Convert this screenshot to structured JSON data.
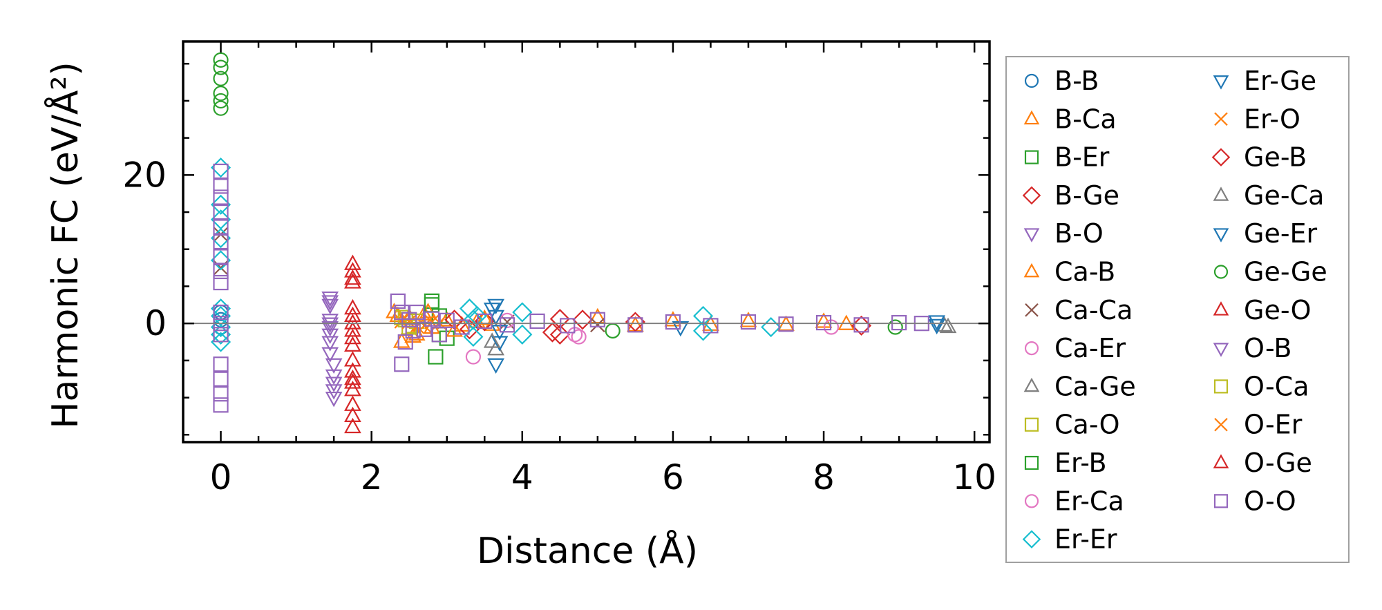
{
  "chart_data": {
    "type": "scatter",
    "title": "",
    "xlabel": "Distance (Å)",
    "ylabel": "Harmonic FC (eV/Å²)",
    "xlim": [
      -0.5,
      10.2
    ],
    "ylim": [
      -16,
      38
    ],
    "xticks": [
      0,
      2,
      4,
      6,
      8,
      10
    ],
    "yticks": [
      0,
      20
    ],
    "xtick_labels": [
      "0",
      "2",
      "4",
      "6",
      "8",
      "10"
    ],
    "ytick_labels": [
      "0",
      "20"
    ],
    "reference_line_y": 0,
    "grid": false,
    "legend_position": "right-outside",
    "legend_columns": 2,
    "series": [
      {
        "name": "B-B",
        "marker": "circle",
        "color": "#1f77b4",
        "x": [
          0,
          0,
          0
        ],
        "y": [
          0.5,
          -0.5,
          1.5
        ]
      },
      {
        "name": "B-Ca",
        "marker": "triangle-up",
        "color": "#ff7f0e",
        "x": [
          2.3,
          2.4,
          2.5,
          2.6,
          2.7,
          2.8,
          3.0,
          3.2,
          3.4,
          3.6
        ],
        "y": [
          1.5,
          -2.5,
          0.8,
          -1.5,
          1.2,
          -0.6,
          0.4,
          -0.3,
          0.2,
          -0.2
        ]
      },
      {
        "name": "B-Er",
        "marker": "square",
        "color": "#2ca02c",
        "x": [
          2.8,
          2.85,
          2.9,
          3.0
        ],
        "y": [
          3.0,
          -4.5,
          1.0,
          -2.0
        ]
      },
      {
        "name": "B-Ge",
        "marker": "diamond",
        "color": "#d62728",
        "x": [
          3.1,
          3.3,
          3.5,
          4.5,
          4.8
        ],
        "y": [
          0.5,
          -0.8,
          0.3,
          -1.5,
          0.5
        ]
      },
      {
        "name": "B-O",
        "marker": "triangle-down",
        "color": "#9467bd",
        "x": [
          1.45,
          1.45,
          1.45,
          1.45,
          1.45,
          1.45,
          1.45,
          1.5,
          1.5,
          1.5,
          1.5,
          1.5
        ],
        "y": [
          3.5,
          2.5,
          0.5,
          -0.5,
          -1.5,
          -2.5,
          -4.0,
          -5.5,
          -7.0,
          -8.0,
          -9.0,
          -10.0
        ]
      },
      {
        "name": "Ca-B",
        "marker": "triangle-up",
        "color": "#ff7f0e",
        "x": [
          2.35,
          2.55,
          2.75,
          3.1,
          3.5,
          5.0,
          5.5,
          6.0,
          6.5,
          7.0,
          7.5,
          8.0,
          8.3
        ],
        "y": [
          1.0,
          -1.8,
          1.5,
          -1.0,
          0.6,
          0.8,
          -0.3,
          0.4,
          -0.2,
          0.3,
          -0.2,
          0.2,
          -0.1
        ]
      },
      {
        "name": "Ca-Ca",
        "marker": "x",
        "color": "#8c564b",
        "x": [
          0,
          0,
          3.8,
          5.0
        ],
        "y": [
          7.5,
          12.0,
          0.2,
          -0.2
        ]
      },
      {
        "name": "Ca-Er",
        "marker": "circle",
        "color": "#e377c2",
        "x": [
          3.35,
          4.75,
          8.1
        ],
        "y": [
          -4.5,
          -1.8,
          -0.5
        ]
      },
      {
        "name": "Ca-Ge",
        "marker": "triangle-up",
        "color": "#7f7f7f",
        "x": [
          3.65,
          9.6
        ],
        "y": [
          -3.5,
          -0.3
        ]
      },
      {
        "name": "Ca-O",
        "marker": "square",
        "color": "#bcbd22",
        "x": [
          2.4,
          2.5,
          2.6
        ],
        "y": [
          0.8,
          -0.5,
          0.3
        ]
      },
      {
        "name": "Er-B",
        "marker": "square",
        "color": "#2ca02c",
        "x": [
          2.8,
          2.9
        ],
        "y": [
          2.5,
          -1.5
        ]
      },
      {
        "name": "Er-Ca",
        "marker": "circle",
        "color": "#e377c2",
        "x": [
          3.8,
          4.7
        ],
        "y": [
          0.4,
          -1.5
        ]
      },
      {
        "name": "Er-Er",
        "marker": "diamond",
        "color": "#17becf",
        "x": [
          0,
          0,
          0,
          0,
          0,
          0,
          0,
          0,
          0,
          0,
          3.3,
          3.35,
          3.35,
          3.4,
          4.0,
          4.0,
          6.4,
          6.4,
          7.3
        ],
        "y": [
          21.0,
          16.0,
          14.0,
          11.5,
          2.0,
          1.0,
          -0.5,
          -1.5,
          -2.5,
          8.5,
          2.0,
          0.5,
          -1.8,
          1.0,
          1.5,
          -1.5,
          1.0,
          -1.0,
          -0.5
        ]
      },
      {
        "name": "Er-Ge",
        "marker": "triangle-down",
        "color": "#1f77b4",
        "x": [
          3.65,
          3.65,
          3.65,
          3.7,
          9.5
        ],
        "y": [
          2.5,
          1.0,
          -5.5,
          -2.5,
          0.3
        ]
      },
      {
        "name": "Er-O",
        "marker": "x",
        "color": "#ff7f0e",
        "x": [
          2.4,
          2.6,
          2.8
        ],
        "y": [
          0.3,
          -0.4,
          0.2
        ]
      },
      {
        "name": "Ge-B",
        "marker": "diamond",
        "color": "#d62728",
        "x": [
          4.4,
          4.5,
          5.5,
          8.5
        ],
        "y": [
          -1.2,
          0.6,
          0.2,
          -0.3
        ]
      },
      {
        "name": "Ge-Ca",
        "marker": "triangle-up",
        "color": "#7f7f7f",
        "x": [
          3.6,
          9.65
        ],
        "y": [
          -2.5,
          -0.5
        ]
      },
      {
        "name": "Ge-Er",
        "marker": "triangle-down",
        "color": "#1f77b4",
        "x": [
          3.6,
          3.7,
          6.1,
          9.5
        ],
        "y": [
          2.0,
          -1.0,
          -0.5,
          -0.2
        ]
      },
      {
        "name": "Ge-Ge",
        "marker": "circle",
        "color": "#2ca02c",
        "x": [
          0,
          0,
          0,
          0,
          0,
          0,
          5.2,
          8.95
        ],
        "y": [
          35.5,
          34.5,
          33.0,
          31.0,
          30.0,
          29.0,
          -1.0,
          -0.5
        ]
      },
      {
        "name": "Ge-O",
        "marker": "triangle-up",
        "color": "#d62728",
        "x": [
          1.75,
          1.75,
          1.75,
          1.75,
          1.75,
          1.75,
          1.75,
          1.75,
          1.75,
          1.75,
          1.75,
          1.75,
          1.75,
          1.75,
          1.75
        ],
        "y": [
          8.0,
          7.0,
          6.0,
          5.5,
          1.0,
          0.0,
          -1.0,
          -2.0,
          -5.0,
          -6.5,
          -8.0,
          -9.0,
          -11.0,
          -12.5,
          -14.0
        ]
      },
      {
        "name": "O-B",
        "marker": "triangle-down",
        "color": "#9467bd",
        "x": [
          1.45,
          1.45
        ],
        "y": [
          3.0,
          0.0
        ]
      },
      {
        "name": "O-Ca",
        "marker": "square",
        "color": "#bcbd22",
        "x": [
          2.45,
          2.55
        ],
        "y": [
          0.5,
          -0.3
        ]
      },
      {
        "name": "O-Er",
        "marker": "x",
        "color": "#ff7f0e",
        "x": [
          2.5,
          2.7,
          2.9
        ],
        "y": [
          0.2,
          -0.3,
          0.1
        ]
      },
      {
        "name": "O-Ge",
        "marker": "triangle-up",
        "color": "#d62728",
        "x": [
          1.75,
          1.75,
          1.75
        ],
        "y": [
          2.0,
          -3.0,
          -7.5
        ]
      },
      {
        "name": "O-O",
        "marker": "square",
        "color": "#9467bd",
        "x": [
          0,
          0,
          0,
          0,
          0,
          0,
          0,
          0,
          0,
          0,
          0,
          0,
          0,
          0,
          0,
          0,
          2.35,
          2.4,
          2.4,
          2.45,
          2.5,
          2.55,
          2.6,
          2.7,
          2.8,
          2.9,
          3.0,
          3.2,
          3.5,
          3.8,
          4.2,
          4.6,
          5.0,
          5.5,
          6.0,
          6.5,
          7.0,
          7.5,
          8.0,
          8.5,
          9.0,
          9.3
        ],
        "y": [
          20.5,
          18.5,
          17.0,
          15.0,
          13.0,
          11.0,
          9.0,
          7.0,
          5.5,
          1.5,
          0.0,
          -1.5,
          -5.5,
          -7.5,
          -9.5,
          -11.0,
          3.0,
          1.5,
          -5.5,
          -2.5,
          0.5,
          -1.0,
          1.5,
          -0.8,
          0.6,
          -1.5,
          0.4,
          -0.5,
          0.3,
          -0.2,
          0.3,
          -0.3,
          0.5,
          -0.2,
          0.2,
          -0.3,
          0.2,
          -0.1,
          0.1,
          -0.2,
          0.1,
          0.0
        ]
      }
    ]
  }
}
